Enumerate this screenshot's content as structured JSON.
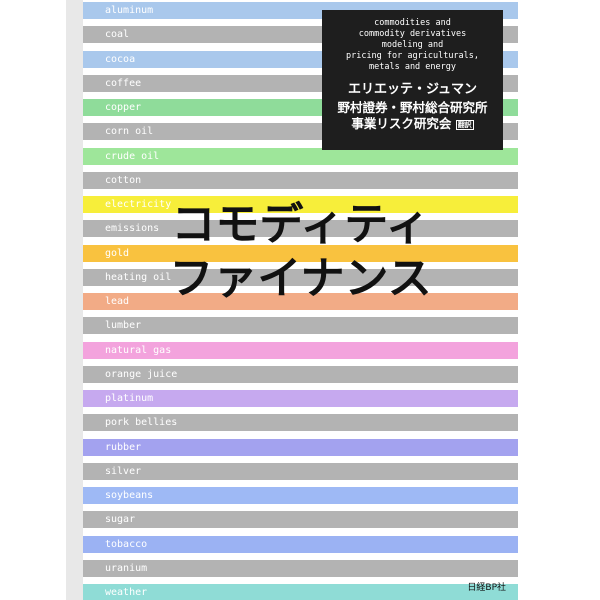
{
  "stripes": [
    {
      "label": "aluminum",
      "color": "#a9c8ec"
    },
    {
      "label": "coal",
      "color": "#b3b3b3"
    },
    {
      "label": "cocoa",
      "color": "#a9c8ec"
    },
    {
      "label": "coffee",
      "color": "#b3b3b3"
    },
    {
      "label": "copper",
      "color": "#8fdc9a"
    },
    {
      "label": "corn oil",
      "color": "#b3b3b3"
    },
    {
      "label": "crude oil",
      "color": "#9ee69a"
    },
    {
      "label": "cotton",
      "color": "#b3b3b3"
    },
    {
      "label": "electricity",
      "color": "#f7ee3a"
    },
    {
      "label": "emissions",
      "color": "#b3b3b3"
    },
    {
      "label": "gold",
      "color": "#f9c23f"
    },
    {
      "label": "heating oil",
      "color": "#b3b3b3"
    },
    {
      "label": "lead",
      "color": "#f2ab86"
    },
    {
      "label": "lumber",
      "color": "#b3b3b3"
    },
    {
      "label": "natural gas",
      "color": "#f3a3dd"
    },
    {
      "label": "orange juice",
      "color": "#b3b3b3"
    },
    {
      "label": "platinum",
      "color": "#c6a9ef"
    },
    {
      "label": "pork bellies",
      "color": "#b3b3b3"
    },
    {
      "label": "rubber",
      "color": "#a3a2ef"
    },
    {
      "label": "silver",
      "color": "#b3b3b3"
    },
    {
      "label": "soybeans",
      "color": "#9eb9f5"
    },
    {
      "label": "sugar",
      "color": "#b3b3b3"
    },
    {
      "label": "tobacco",
      "color": "#9bb2f3"
    },
    {
      "label": "uranium",
      "color": "#b3b3b3"
    },
    {
      "label": "weather",
      "color": "#8fdcd6"
    }
  ],
  "box": {
    "subtitle": [
      "commodities and",
      "commodity derivatives",
      "modeling and",
      "pricing for agriculturals,",
      "metals and energy"
    ],
    "author": "エリエッテ・ジュマン",
    "translator": [
      "野村證券・野村総合研究所",
      "事業リスク研究会"
    ],
    "role": "翻訳"
  },
  "title": [
    "コモディティ",
    "ファイナンス"
  ],
  "publisher": "日経BP社"
}
